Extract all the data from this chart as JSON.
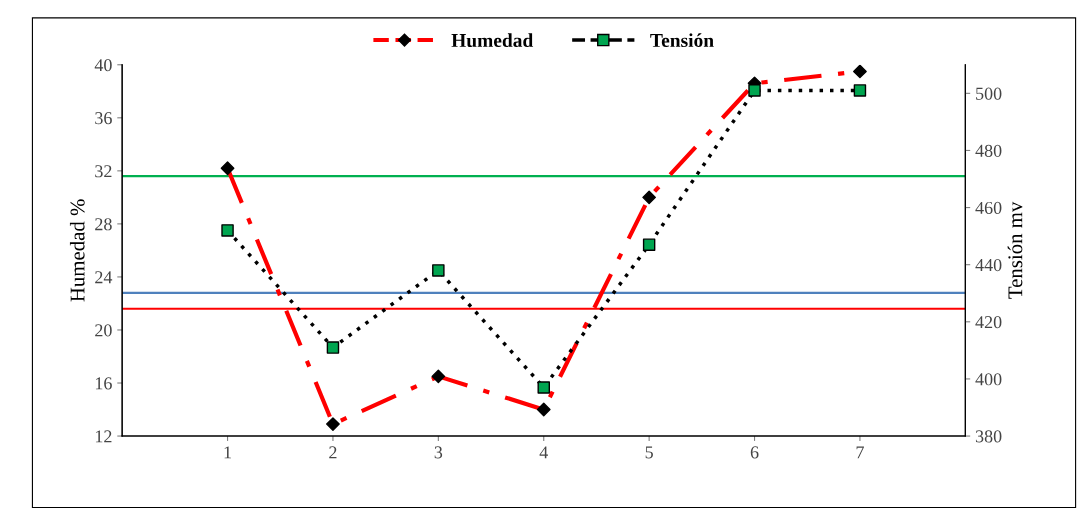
{
  "chart_data": {
    "type": "line",
    "ylabel": "Humedad %",
    "y2label": "Tensión mv",
    "categories": [
      "1",
      "2",
      "3",
      "4",
      "5",
      "6",
      "7"
    ],
    "series": [
      {
        "name": "Humedad",
        "color": "#ff0000",
        "colors": [
          "#000000",
          "#000000",
          "#000000",
          "#000000",
          "#000000",
          "#000000",
          "#000000"
        ],
        "marker": "diamond",
        "line_style": "dashdot",
        "values": [
          32.2,
          12.9,
          16.5,
          14.0,
          30.0,
          38.6,
          39.5
        ]
      },
      {
        "name": "Tensión",
        "color": "#000000",
        "colors": [
          "#00a550",
          "#00a550",
          "#00a550",
          "#00a550",
          "#00a550",
          "#00a550",
          "#00a550"
        ],
        "marker": "square",
        "line_style": "dotted",
        "axis": "y2",
        "values": [
          452,
          411,
          438,
          397,
          447,
          501,
          501
        ]
      }
    ],
    "ylim": [
      12,
      40
    ],
    "yticks": [
      12,
      16,
      20,
      24,
      28,
      32,
      36,
      40
    ],
    "y2lim": [
      380,
      510
    ],
    "y2ticks": [
      380,
      400,
      420,
      440,
      460,
      480,
      500
    ],
    "ref_lines": [
      {
        "axis": "y",
        "value": 31.6,
        "color": "#00b050",
        "line_style": "solid"
      },
      {
        "axis": "y",
        "value": 22.8,
        "color": "#4f81bd",
        "line_style": "solid"
      },
      {
        "axis": "y",
        "value": 21.6,
        "color": "#ff0000",
        "line_style": "solid"
      }
    ],
    "grid": false,
    "legend": "top"
  }
}
